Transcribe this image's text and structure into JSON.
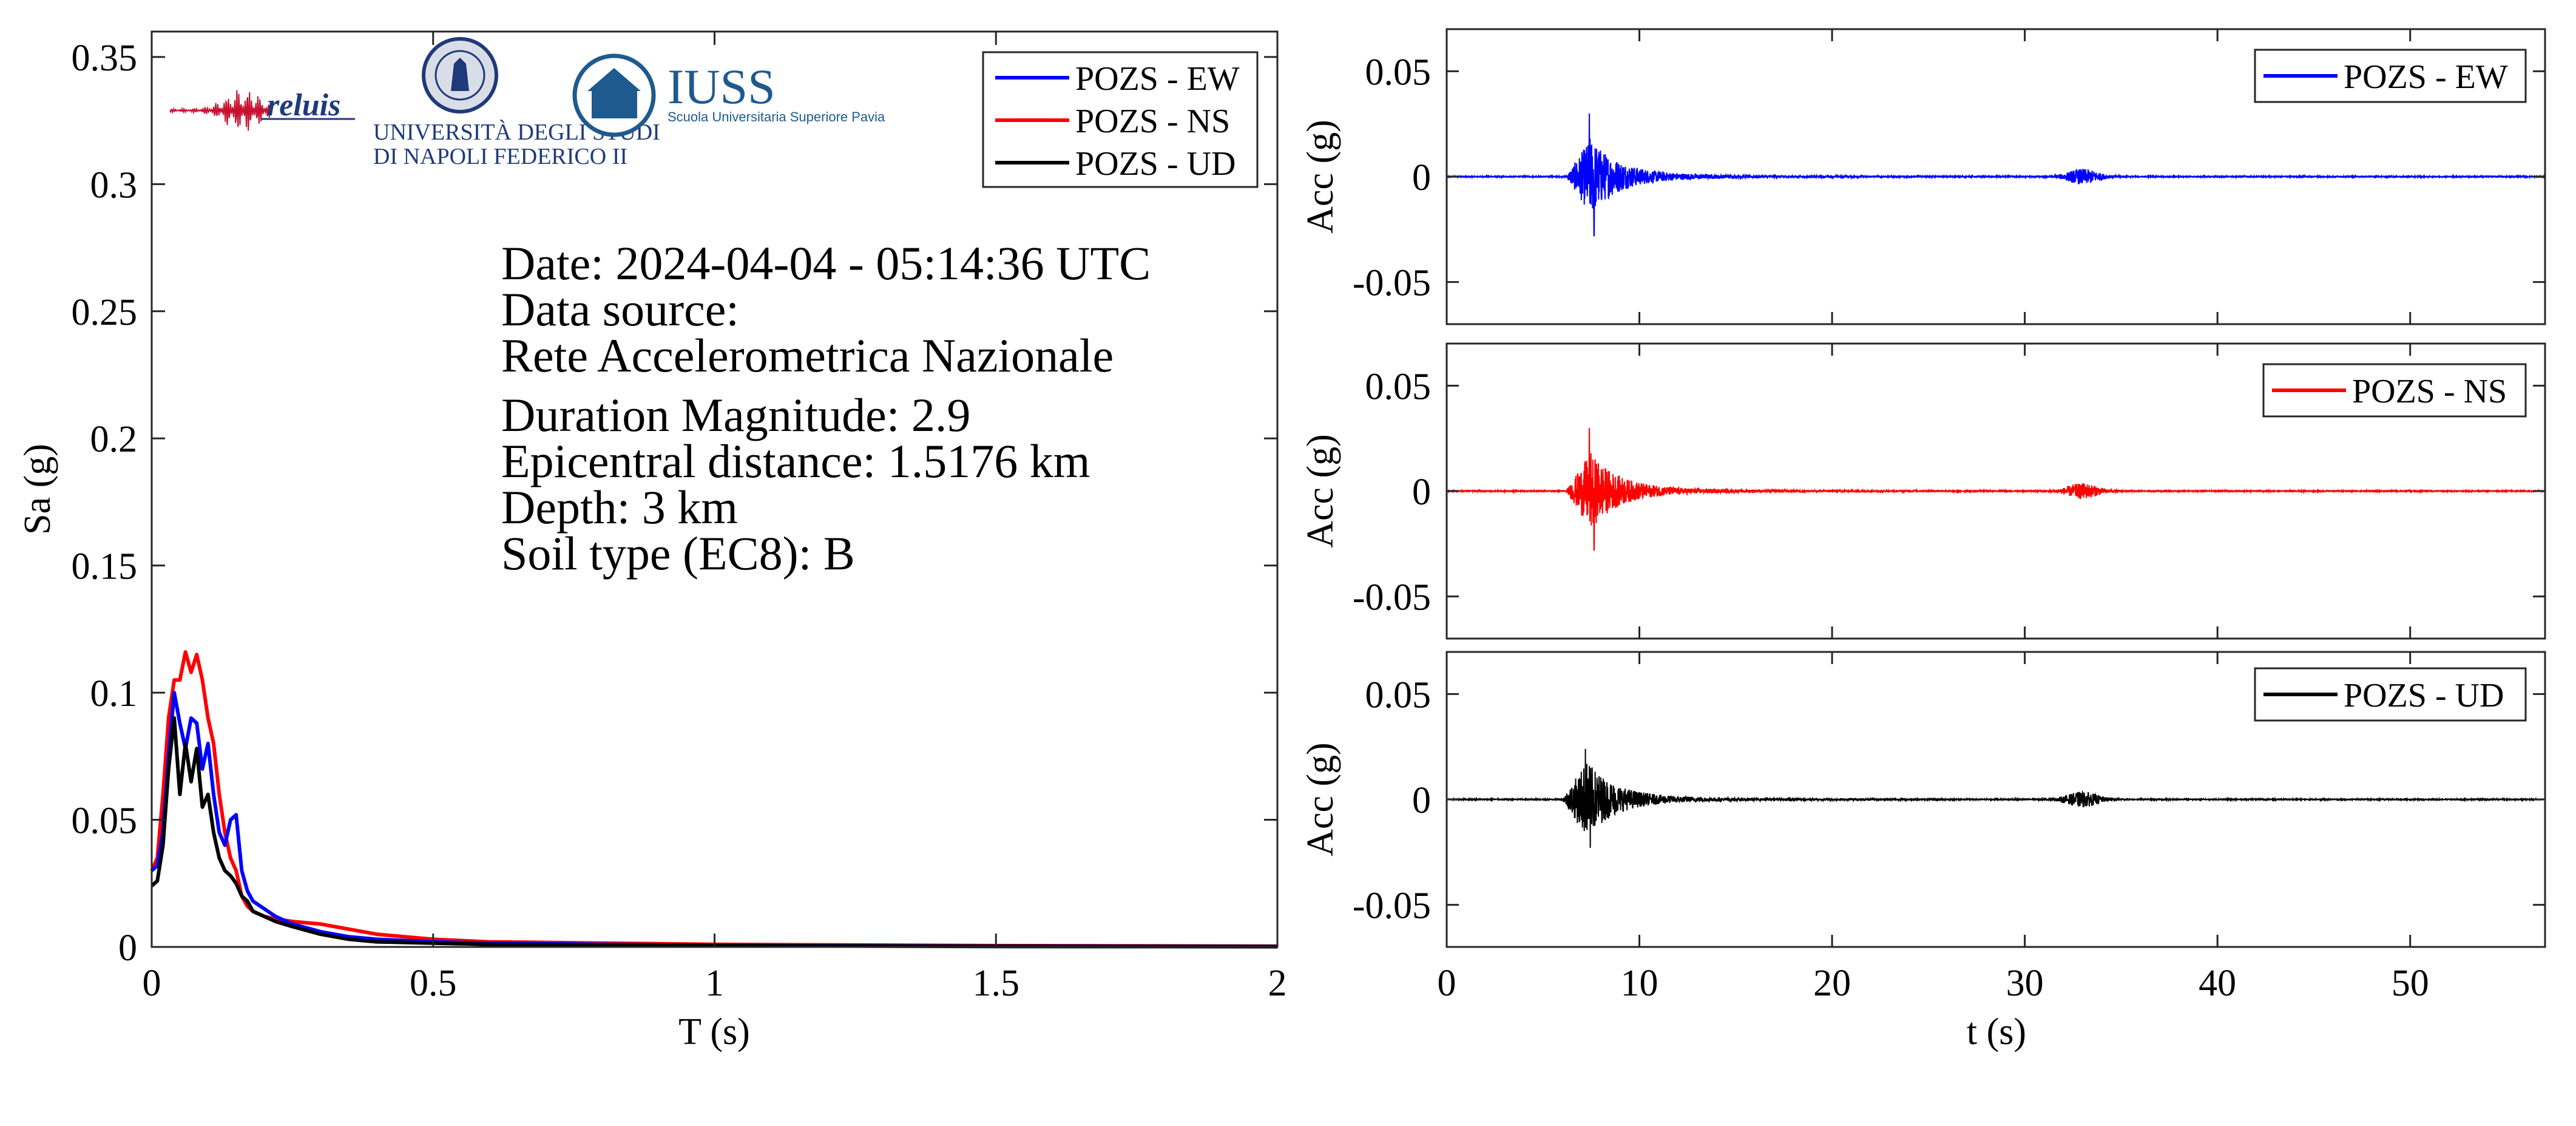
{
  "info": {
    "date": "Date: 2024-04-04 - 05:14:36 UTC",
    "source_label": "Data source:",
    "source_name": "Rete Accelerometrica Nazionale",
    "magnitude": "Duration Magnitude: 2.9",
    "distance": "Epicentral distance: 1.5176 km",
    "depth": "Depth: 3 km",
    "soil": "Soil type (EC8): B"
  },
  "logos": {
    "reluis": "reluis",
    "unina_line1": "UNIVERSITÀ DEGLI STUDI",
    "unina_line2": "DI NAPOLI FEDERICO II",
    "iuss": "IUSS",
    "iuss_sub": "Scuola Universitaria Superiore Pavia"
  },
  "colors": {
    "EW": "#0000ff",
    "NS": "#ff0000",
    "UD": "#000000"
  },
  "chart_data": [
    {
      "type": "line",
      "panel": "response-spectrum",
      "xlabel": "T (s)",
      "ylabel": "Sa (g)",
      "xlim": [
        0,
        2
      ],
      "ylim": [
        0,
        0.36
      ],
      "xticks": [
        0,
        0.5,
        1,
        1.5,
        2
      ],
      "xtick_labels": [
        "0",
        "0.5",
        "1",
        "1.5",
        "2"
      ],
      "yticks": [
        0,
        0.05,
        0.1,
        0.15,
        0.2,
        0.25,
        0.3,
        0.35
      ],
      "ytick_labels": [
        "0",
        "0.05",
        "0.1",
        "0.15",
        "0.2",
        "0.25",
        "0.3",
        "0.35"
      ],
      "grid": false,
      "legend_position": "top-right",
      "series": [
        {
          "name": "POZS - EW",
          "color": "#0000ff",
          "x": [
            0,
            0.01,
            0.02,
            0.03,
            0.04,
            0.05,
            0.06,
            0.07,
            0.08,
            0.09,
            0.1,
            0.11,
            0.12,
            0.13,
            0.14,
            0.15,
            0.16,
            0.17,
            0.18,
            0.2,
            0.22,
            0.25,
            0.3,
            0.35,
            0.4,
            0.5,
            0.6,
            0.8,
            1.0,
            1.5,
            2.0
          ],
          "y": [
            0.03,
            0.032,
            0.045,
            0.075,
            0.1,
            0.088,
            0.078,
            0.09,
            0.088,
            0.07,
            0.08,
            0.06,
            0.045,
            0.04,
            0.05,
            0.052,
            0.03,
            0.022,
            0.018,
            0.015,
            0.012,
            0.009,
            0.006,
            0.004,
            0.003,
            0.002,
            0.0015,
            0.001,
            0.0006,
            0.0003,
            0.0002
          ]
        },
        {
          "name": "POZS - NS",
          "color": "#ff0000",
          "x": [
            0,
            0.01,
            0.02,
            0.03,
            0.04,
            0.05,
            0.06,
            0.07,
            0.08,
            0.09,
            0.1,
            0.11,
            0.12,
            0.13,
            0.14,
            0.15,
            0.16,
            0.17,
            0.18,
            0.2,
            0.22,
            0.25,
            0.3,
            0.35,
            0.4,
            0.5,
            0.6,
            0.8,
            1.0,
            1.5,
            2.0
          ],
          "y": [
            0.03,
            0.035,
            0.06,
            0.09,
            0.105,
            0.105,
            0.116,
            0.108,
            0.115,
            0.105,
            0.09,
            0.08,
            0.06,
            0.045,
            0.035,
            0.03,
            0.02,
            0.016,
            0.014,
            0.012,
            0.011,
            0.01,
            0.009,
            0.007,
            0.005,
            0.003,
            0.002,
            0.0015,
            0.001,
            0.0005,
            0.0003
          ]
        },
        {
          "name": "POZS - UD",
          "color": "#000000",
          "x": [
            0,
            0.01,
            0.02,
            0.03,
            0.04,
            0.05,
            0.06,
            0.07,
            0.08,
            0.09,
            0.1,
            0.11,
            0.12,
            0.13,
            0.14,
            0.15,
            0.16,
            0.17,
            0.18,
            0.2,
            0.22,
            0.25,
            0.3,
            0.35,
            0.4,
            0.5,
            0.6,
            0.8,
            1.0,
            1.5,
            2.0
          ],
          "y": [
            0.024,
            0.026,
            0.04,
            0.07,
            0.09,
            0.06,
            0.08,
            0.065,
            0.078,
            0.055,
            0.06,
            0.045,
            0.035,
            0.03,
            0.028,
            0.025,
            0.02,
            0.018,
            0.014,
            0.012,
            0.01,
            0.008,
            0.005,
            0.003,
            0.002,
            0.0015,
            0.001,
            0.0007,
            0.0005,
            0.0002,
            0.0001
          ]
        }
      ]
    },
    {
      "type": "line",
      "panel": "time-history",
      "xlabel": "t (s)",
      "xlim": [
        0,
        57
      ],
      "xticks": [
        0,
        10,
        20,
        30,
        40,
        50
      ],
      "xtick_labels": [
        "0",
        "10",
        "20",
        "30",
        "40",
        "50"
      ],
      "ylim": [
        -0.07,
        0.07
      ],
      "yticks": [
        -0.05,
        0,
        0.05
      ],
      "ytick_labels": [
        "-0.05",
        "0",
        "0.05"
      ],
      "ylabel": "Acc (g)",
      "grid": false,
      "legend_position": "top-right",
      "series": [
        {
          "name": "POZS - EW",
          "color": "#0000ff",
          "peak_pos": 0.03,
          "peak_neg": -0.028,
          "event_onset": 6.2,
          "peak_time": 7.4,
          "second_burst": 33.0
        },
        {
          "name": "POZS - NS",
          "color": "#ff0000",
          "peak_pos": 0.03,
          "peak_neg": -0.028,
          "event_onset": 6.2,
          "peak_time": 7.4,
          "second_burst": 33.0
        },
        {
          "name": "POZS - UD",
          "color": "#000000",
          "peak_pos": 0.024,
          "peak_neg": -0.023,
          "event_onset": 6.0,
          "peak_time": 7.2,
          "second_burst": 33.0
        }
      ]
    }
  ]
}
